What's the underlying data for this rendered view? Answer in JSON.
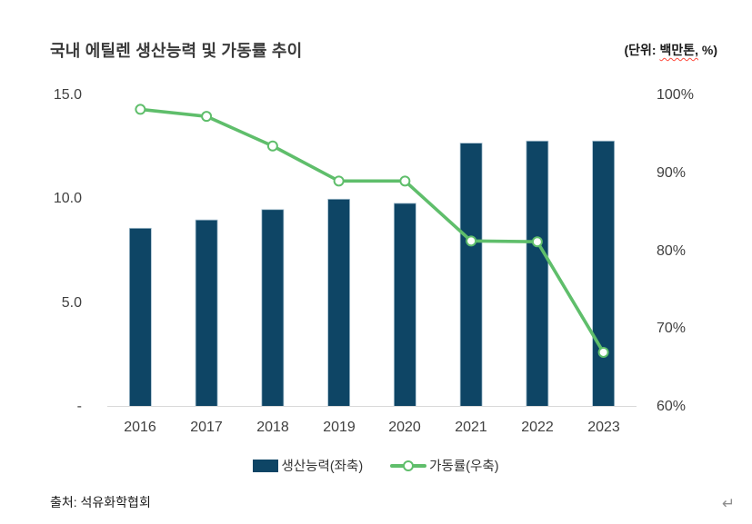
{
  "header": {
    "title": "국내 에틸렌 생산능력 및 가동률 추이",
    "unit_prefix": "(단위: ",
    "unit_misspelled": "백만톤,",
    "unit_suffix": " %)"
  },
  "chart_data": {
    "type": "bar+line combo",
    "title": "국내 에틸렌 생산능력 및 가동률 추이",
    "unit_note": "(단위: 백만톤, %)",
    "categories": [
      "2016",
      "2017",
      "2018",
      "2019",
      "2020",
      "2021",
      "2022",
      "2023"
    ],
    "series": [
      {
        "name": "생산능력(좌축)",
        "type": "bar",
        "axis": "left",
        "values": [
          8.6,
          9.0,
          9.5,
          10.0,
          9.8,
          12.7,
          12.8,
          12.8
        ]
      },
      {
        "name": "가동률(우축)",
        "type": "line",
        "axis": "right",
        "values": [
          98.2,
          97.3,
          93.5,
          89.0,
          89.0,
          81.3,
          81.2,
          67.0
        ]
      }
    ],
    "left_axis": {
      "min": 0,
      "max": 15,
      "ticks": [
        {
          "label": "15.0",
          "value": 15
        },
        {
          "label": "10.0",
          "value": 10
        },
        {
          "label": "5.0",
          "value": 5
        },
        {
          "label": "-",
          "value": 0
        }
      ]
    },
    "right_axis": {
      "min": 60,
      "max": 100,
      "ticks": [
        {
          "label": "100%",
          "value": 100
        },
        {
          "label": "90%",
          "value": 90
        },
        {
          "label": "80%",
          "value": 80
        },
        {
          "label": "70%",
          "value": 70
        },
        {
          "label": "60%",
          "value": 60
        }
      ]
    },
    "grid": false,
    "legend_position": "bottom"
  },
  "footer": {
    "source": "출처: 석유화학협회",
    "return_mark": "↵"
  },
  "colors": {
    "bar": "#0e4565",
    "bar_border": "#a6c0cf",
    "line": "#5fbe6b",
    "marker_fill": "#ffffff",
    "axis_line": "#d9d9d9",
    "tick_text": "#404040",
    "spellcheck": "#ff4b3e"
  }
}
